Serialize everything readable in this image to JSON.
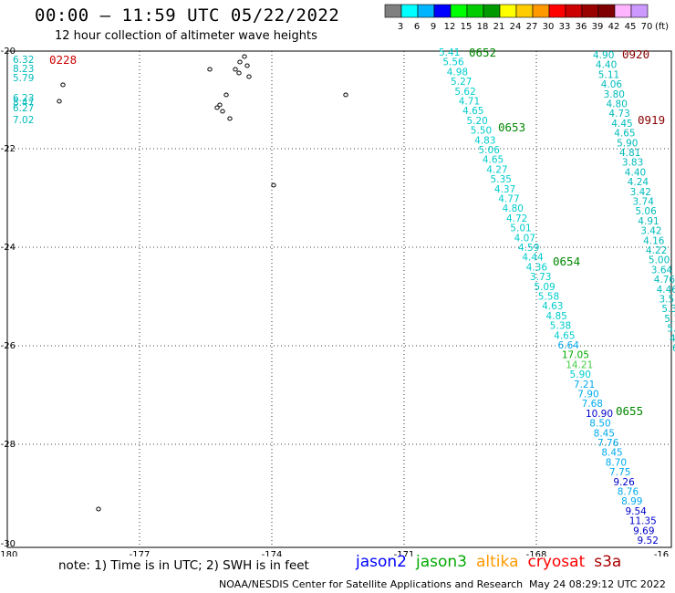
{
  "title": "00:00 – 11:59 UTC 05/22/2022",
  "subtitle": "12 hour collection of altimeter wave heights",
  "legend": {
    "unit": "(ft)",
    "ticks": [
      "3",
      "6",
      "9",
      "12",
      "15",
      "18",
      "21",
      "24",
      "27",
      "30",
      "33",
      "36",
      "39",
      "42",
      "45",
      "70"
    ],
    "colors": [
      "#7f7f7f",
      "#00ffff",
      "#00b4ff",
      "#0000ff",
      "#00ff00",
      "#00cc00",
      "#009900",
      "#ffff00",
      "#ffcc00",
      "#ff9900",
      "#ff0000",
      "#cc0000",
      "#990000",
      "#7f0000",
      "#ffb4ff",
      "#cc99ff"
    ]
  },
  "axes": {
    "x_ticks": [
      "-180",
      "-177",
      "-174",
      "-171",
      "-168",
      "-16"
    ],
    "y_ticks": [
      "-20",
      "-22",
      "-24",
      "-26",
      "-28",
      "-30"
    ]
  },
  "pass_labels": [
    {
      "text": "0228",
      "color": "#cc0000"
    },
    {
      "text": "0652",
      "color": "#008800"
    },
    {
      "text": "0653",
      "color": "#008800"
    },
    {
      "text": "0654",
      "color": "#008800"
    },
    {
      "text": "0655",
      "color": "#008800"
    },
    {
      "text": "0920",
      "color": "#880000"
    },
    {
      "text": "0919",
      "color": "#880000"
    }
  ],
  "obs_left": [
    "6.32",
    "8.23",
    "5.79",
    "6.23",
    "8.47",
    "6.27",
    "7.02"
  ],
  "track_mid": [
    {
      "v": "5.41",
      "c": "#00cccc"
    },
    {
      "v": "5.56",
      "c": "#00cccc"
    },
    {
      "v": "4.98",
      "c": "#00cccc"
    },
    {
      "v": "5.27",
      "c": "#00cccc"
    },
    {
      "v": "5.62",
      "c": "#00cccc"
    },
    {
      "v": "4.71",
      "c": "#00cccc"
    },
    {
      "v": "4.65",
      "c": "#00cccc"
    },
    {
      "v": "5.20",
      "c": "#00cccc"
    },
    {
      "v": "5.50",
      "c": "#00cccc"
    },
    {
      "v": "4.83",
      "c": "#00cccc"
    },
    {
      "v": "5.06",
      "c": "#00cccc"
    },
    {
      "v": "4.65",
      "c": "#00cccc"
    },
    {
      "v": "4.27",
      "c": "#00cccc"
    },
    {
      "v": "5.35",
      "c": "#00cccc"
    },
    {
      "v": "4.37",
      "c": "#00cccc"
    },
    {
      "v": "4.77",
      "c": "#00cccc"
    },
    {
      "v": "4.80",
      "c": "#00cccc"
    },
    {
      "v": "4.72",
      "c": "#00cccc"
    },
    {
      "v": "5.01",
      "c": "#00cccc"
    },
    {
      "v": "4.07",
      "c": "#00cccc"
    },
    {
      "v": "4.59",
      "c": "#00cccc"
    },
    {
      "v": "4.44",
      "c": "#00cccc"
    },
    {
      "v": "4.36",
      "c": "#00cccc"
    },
    {
      "v": "3.73",
      "c": "#00cccc"
    },
    {
      "v": "5.09",
      "c": "#00cccc"
    },
    {
      "v": "5.58",
      "c": "#00cccc"
    },
    {
      "v": "4.63",
      "c": "#00cccc"
    },
    {
      "v": "4.85",
      "c": "#00cccc"
    },
    {
      "v": "5.38",
      "c": "#00cccc"
    },
    {
      "v": "4.65",
      "c": "#00cccc"
    },
    {
      "v": "6.64",
      "c": "#00aaee"
    },
    {
      "v": "17.05",
      "c": "#00aa00"
    },
    {
      "v": "14.21",
      "c": "#44cc44"
    },
    {
      "v": "5.90",
      "c": "#00cccc"
    },
    {
      "v": "7.21",
      "c": "#00aaee"
    },
    {
      "v": "7.90",
      "c": "#00aaee"
    },
    {
      "v": "7.68",
      "c": "#00aaee"
    },
    {
      "v": "10.90",
      "c": "#0000cc"
    },
    {
      "v": "8.50",
      "c": "#00aaee"
    },
    {
      "v": "8.45",
      "c": "#00aaee"
    },
    {
      "v": "7.76",
      "c": "#00aaee"
    },
    {
      "v": "8.45",
      "c": "#00aaee"
    },
    {
      "v": "8.70",
      "c": "#00aaee"
    },
    {
      "v": "7.75",
      "c": "#00aaee"
    },
    {
      "v": "9.26",
      "c": "#0000cc"
    },
    {
      "v": "8.76",
      "c": "#00aaee"
    },
    {
      "v": "8.99",
      "c": "#00aaee"
    },
    {
      "v": "9.54",
      "c": "#0000cc"
    },
    {
      "v": "11.35",
      "c": "#0000cc"
    },
    {
      "v": "9.69",
      "c": "#0000cc"
    },
    {
      "v": "9.52",
      "c": "#0000cc"
    }
  ],
  "track_right": [
    "4.90",
    "4.40",
    "5.11",
    "4.06",
    "3.80",
    "4.80",
    "4.73",
    "4.45",
    "4.65",
    "5.90",
    "4.81",
    "3.83",
    "4.40",
    "4.24",
    "3.42",
    "3.74",
    "5.06",
    "4.91",
    "3.42",
    "4.16",
    "4.22",
    "5.00",
    "3.64",
    "4.76",
    "4.46",
    "3.54",
    "5.3",
    "5.1",
    "5.6",
    "4.",
    "6.",
    "6"
  ],
  "note": "note: 1) Time is in UTC; 2) SWH is in feet",
  "satellites": [
    {
      "name": "jason2",
      "color": "#0000ff"
    },
    {
      "name": "jason3",
      "color": "#00aa00"
    },
    {
      "name": "altika",
      "color": "#ff9900"
    },
    {
      "name": "cryosat",
      "color": "#ff0000"
    },
    {
      "name": "s3a",
      "color": "#aa0000"
    }
  ],
  "credit": "NOAA/NESDIS Center for Satellite Applications and Research",
  "timestamp": "May 24 08:29:12 UTC 2022"
}
